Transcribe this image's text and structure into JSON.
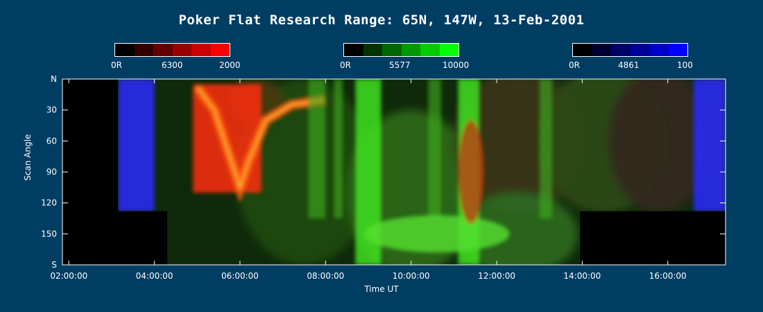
{
  "chart_data": {
    "type": "heatmap",
    "title": "Poker Flat Research Range: 65N, 147W, 13-Feb-2001",
    "xlabel": "Time UT",
    "ylabel": "Scan Angle",
    "x_ticks": [
      "02:00:00",
      "04:00:00",
      "06:00:00",
      "08:00:00",
      "10:00:00",
      "12:00:00",
      "14:00:00",
      "16:00:00"
    ],
    "x_tick_hours": [
      2,
      4,
      6,
      8,
      10,
      12,
      14,
      16
    ],
    "xlim_hours": [
      1.85,
      17.35
    ],
    "y_ticks": [
      "N",
      "30",
      "60",
      "90",
      "120",
      "150",
      "S"
    ],
    "y_tick_values": [
      0,
      30,
      60,
      90,
      120,
      150,
      180
    ],
    "ylim": [
      0,
      180
    ],
    "colorbars": [
      {
        "name": "6300",
        "min_label": "0R",
        "max_label": "2000",
        "colors": [
          "#000000",
          "#330000",
          "#660000",
          "#990000",
          "#cc0000",
          "#ff0000"
        ]
      },
      {
        "name": "5577",
        "min_label": "0R",
        "max_label": "10000",
        "colors": [
          "#000000",
          "#003300",
          "#006600",
          "#009900",
          "#00cc00",
          "#00ff00"
        ]
      },
      {
        "name": "4861",
        "min_label": "0R",
        "max_label": "100",
        "colors": [
          "#000000",
          "#000033",
          "#000066",
          "#000099",
          "#0000cc",
          "#0000ff"
        ]
      }
    ],
    "no_data_regions": [
      {
        "t_start": 1.85,
        "t_end": 3.15,
        "angle_start": 0,
        "angle_end": 180
      },
      {
        "t_start": 3.15,
        "t_end": 4.3,
        "angle_start": 128,
        "angle_end": 180
      },
      {
        "t_start": 13.95,
        "t_end": 17.35,
        "angle_start": 128,
        "angle_end": 180
      }
    ],
    "emission_features": [
      {
        "emission": "4861",
        "t_start": 3.15,
        "t_end": 4.0,
        "angle_start": 0,
        "angle_end": 128,
        "intensity": "high"
      },
      {
        "emission": "4861",
        "t_start": 16.6,
        "t_end": 17.35,
        "angle_start": 0,
        "angle_end": 128,
        "intensity": "high"
      },
      {
        "emission": "6300",
        "t_start": 4.9,
        "t_end": 6.5,
        "angle_start": 5,
        "angle_end": 110,
        "intensity": "high"
      },
      {
        "emission": "5577",
        "t_start": 8.7,
        "t_end": 9.3,
        "angle_start": 0,
        "angle_end": 180,
        "intensity": "high"
      },
      {
        "emission": "5577",
        "t_start": 11.1,
        "t_end": 11.6,
        "angle_start": 0,
        "angle_end": 180,
        "intensity": "high"
      }
    ]
  }
}
